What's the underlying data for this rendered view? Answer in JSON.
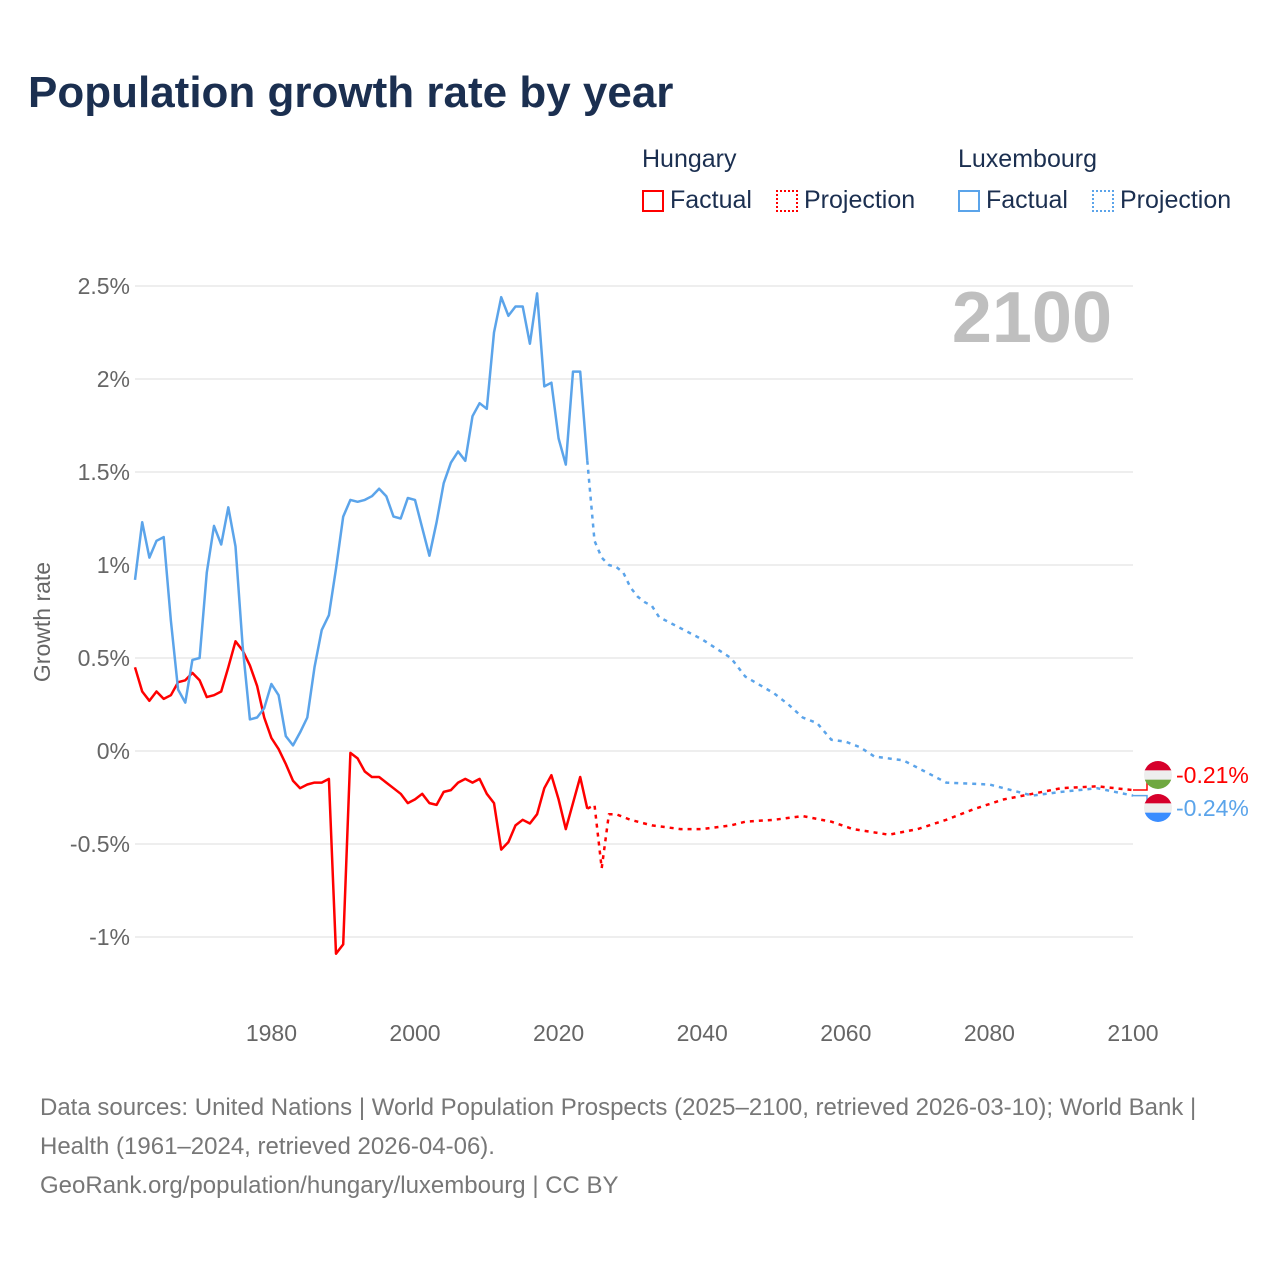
{
  "title": "Population growth rate by year",
  "legend": {
    "groups": [
      {
        "country": "Hungary",
        "factual": "Factual",
        "projection": "Projection",
        "color": "#ff0000"
      },
      {
        "country": "Luxembourg",
        "factual": "Factual",
        "projection": "Projection",
        "color": "#5ba4ea"
      }
    ]
  },
  "year_overlay": "2100",
  "sources": "Data sources: United Nations | World Population Prospects (2025–2100, retrieved 2026-03-10); World Bank | Health (1961–2024, retrieved 2026-04-06).",
  "credit": "GeoRank.org/population/hungary/luxembourg | CC BY",
  "chart_data": {
    "type": "line",
    "title": "Population growth rate by year",
    "xlabel": "",
    "ylabel": "Growth rate",
    "xlim": [
      1961,
      2100
    ],
    "ylim": [
      -1.25,
      2.75
    ],
    "xticks": [
      1980,
      2000,
      2020,
      2040,
      2060,
      2080,
      2100
    ],
    "xtick_labels": [
      "1980",
      "2000",
      "2020",
      "2040",
      "2060",
      "2080",
      "2100"
    ],
    "yticks": [
      -1,
      -0.5,
      0,
      0.5,
      1,
      1.5,
      2,
      2.5
    ],
    "ytick_labels": [
      "-1%",
      "-0.5%",
      "0%",
      "0.5%",
      "1%",
      "1.5%",
      "2%",
      "2.5%"
    ],
    "grid": true,
    "legend_position": "top-right",
    "series": [
      {
        "name": "Hungary Factual",
        "color": "#ff0000",
        "dashed": false,
        "x": [
          1961,
          1962,
          1963,
          1964,
          1965,
          1966,
          1967,
          1968,
          1969,
          1970,
          1971,
          1972,
          1973,
          1974,
          1975,
          1976,
          1977,
          1978,
          1979,
          1980,
          1981,
          1982,
          1983,
          1984,
          1985,
          1986,
          1987,
          1988,
          1989,
          1990,
          1991,
          1992,
          1993,
          1994,
          1995,
          1996,
          1997,
          1998,
          1999,
          2000,
          2001,
          2002,
          2003,
          2004,
          2005,
          2006,
          2007,
          2008,
          2009,
          2010,
          2011,
          2012,
          2013,
          2014,
          2015,
          2016,
          2017,
          2018,
          2019,
          2020,
          2021,
          2022,
          2023,
          2024
        ],
        "y": [
          0.45,
          0.32,
          0.27,
          0.32,
          0.28,
          0.3,
          0.37,
          0.38,
          0.42,
          0.38,
          0.29,
          0.3,
          0.32,
          0.45,
          0.59,
          0.54,
          0.46,
          0.35,
          0.18,
          0.07,
          0.01,
          -0.07,
          -0.16,
          -0.2,
          -0.18,
          -0.17,
          -0.17,
          -0.15,
          -1.09,
          -1.04,
          -0.01,
          -0.04,
          -0.11,
          -0.14,
          -0.14,
          -0.17,
          -0.2,
          -0.23,
          -0.28,
          -0.26,
          -0.23,
          -0.28,
          -0.29,
          -0.22,
          -0.21,
          -0.17,
          -0.15,
          -0.17,
          -0.15,
          -0.23,
          -0.28,
          -0.53,
          -0.49,
          -0.4,
          -0.37,
          -0.39,
          -0.34,
          -0.2,
          -0.13,
          -0.26,
          -0.42,
          -0.28,
          -0.14,
          -0.31
        ]
      },
      {
        "name": "Hungary Projection",
        "color": "#ff0000",
        "dashed": true,
        "x": [
          2024,
          2025,
          2026,
          2027,
          2028,
          2030,
          2033,
          2037,
          2040,
          2044,
          2046,
          2050,
          2054,
          2058,
          2061,
          2066,
          2070,
          2074,
          2078,
          2082,
          2086,
          2090,
          2095,
          2100
        ],
        "y": [
          -0.31,
          -0.29,
          -0.63,
          -0.34,
          -0.34,
          -0.37,
          -0.4,
          -0.42,
          -0.42,
          -0.4,
          -0.38,
          -0.37,
          -0.35,
          -0.38,
          -0.42,
          -0.45,
          -0.42,
          -0.37,
          -0.31,
          -0.26,
          -0.23,
          -0.2,
          -0.19,
          -0.21
        ]
      },
      {
        "name": "Luxembourg Factual",
        "color": "#5ba4ea",
        "dashed": false,
        "x": [
          1961,
          1962,
          1963,
          1964,
          1965,
          1966,
          1967,
          1968,
          1969,
          1970,
          1971,
          1972,
          1973,
          1974,
          1975,
          1976,
          1977,
          1978,
          1979,
          1980,
          1981,
          1982,
          1983,
          1984,
          1985,
          1986,
          1987,
          1988,
          1989,
          1990,
          1991,
          1992,
          1993,
          1994,
          1995,
          1996,
          1997,
          1998,
          1999,
          2000,
          2001,
          2002,
          2003,
          2004,
          2005,
          2006,
          2007,
          2008,
          2009,
          2010,
          2011,
          2012,
          2013,
          2014,
          2015,
          2016,
          2017,
          2018,
          2019,
          2020,
          2021,
          2022,
          2023,
          2024
        ],
        "y": [
          0.92,
          1.23,
          1.04,
          1.13,
          1.15,
          0.7,
          0.33,
          0.26,
          0.49,
          0.5,
          0.96,
          1.21,
          1.11,
          1.31,
          1.1,
          0.56,
          0.17,
          0.18,
          0.23,
          0.36,
          0.3,
          0.08,
          0.03,
          0.1,
          0.18,
          0.45,
          0.65,
          0.73,
          0.98,
          1.26,
          1.35,
          1.34,
          1.35,
          1.37,
          1.41,
          1.37,
          1.26,
          1.25,
          1.36,
          1.35,
          1.2,
          1.05,
          1.23,
          1.44,
          1.55,
          1.61,
          1.56,
          1.8,
          1.87,
          1.84,
          2.25,
          2.44,
          2.34,
          2.39,
          2.39,
          2.19,
          2.46,
          1.96,
          1.98,
          1.68,
          1.54,
          2.04,
          2.04,
          1.56
        ]
      },
      {
        "name": "Luxembourg Projection",
        "color": "#5ba4ea",
        "dashed": true,
        "x": [
          2024,
          2025,
          2026,
          2027,
          2028,
          2029,
          2030,
          2031,
          2032,
          2033,
          2034,
          2035,
          2040,
          2044,
          2046,
          2050,
          2052,
          2054,
          2056,
          2058,
          2060,
          2062,
          2064,
          2068,
          2072,
          2074,
          2080,
          2086,
          2090,
          2095,
          2100
        ],
        "y": [
          1.56,
          1.13,
          1.04,
          1.0,
          0.99,
          0.96,
          0.88,
          0.83,
          0.8,
          0.78,
          0.72,
          0.7,
          0.6,
          0.5,
          0.4,
          0.31,
          0.25,
          0.18,
          0.15,
          0.06,
          0.05,
          0.02,
          -0.03,
          -0.05,
          -0.13,
          -0.17,
          -0.18,
          -0.24,
          -0.22,
          -0.2,
          -0.24
        ]
      }
    ],
    "end_labels": [
      {
        "country": "Hungary",
        "label": "-0.21%",
        "color": "#ff0000"
      },
      {
        "country": "Luxembourg",
        "label": "-0.24%",
        "color": "#5ba4ea"
      }
    ]
  }
}
